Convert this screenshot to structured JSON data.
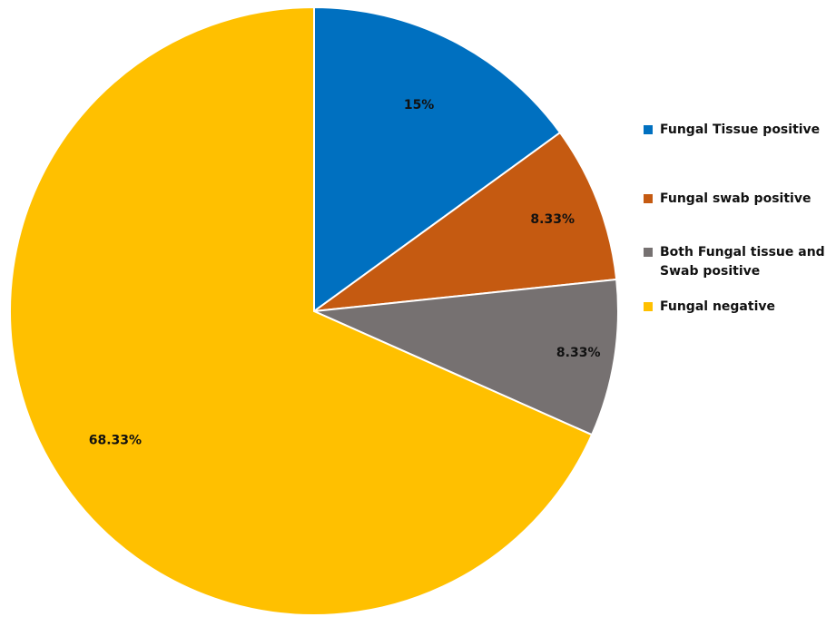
{
  "chart_data": {
    "type": "pie",
    "title": "",
    "categories": [
      "Fungal Tissue positive",
      "Fungal swab positive",
      "Both Fungal tissue and Swab positive",
      "Fungal negative"
    ],
    "values": [
      15,
      8.33,
      8.33,
      68.33
    ],
    "data_labels": [
      "15%",
      "8.33%",
      "8.33%",
      "68.33%"
    ],
    "colors": [
      "#0070C0",
      "#C55A11",
      "#767171",
      "#FFC000"
    ],
    "start_angle_deg": 0,
    "direction": "clockwise",
    "legend_position": "right",
    "legend": [
      {
        "label": "Fungal Tissue positive"
      },
      {
        "label": "Fungal swab positive"
      },
      {
        "label": "Both Fungal tissue and Swab positive"
      },
      {
        "label": "Fungal negative"
      }
    ]
  }
}
